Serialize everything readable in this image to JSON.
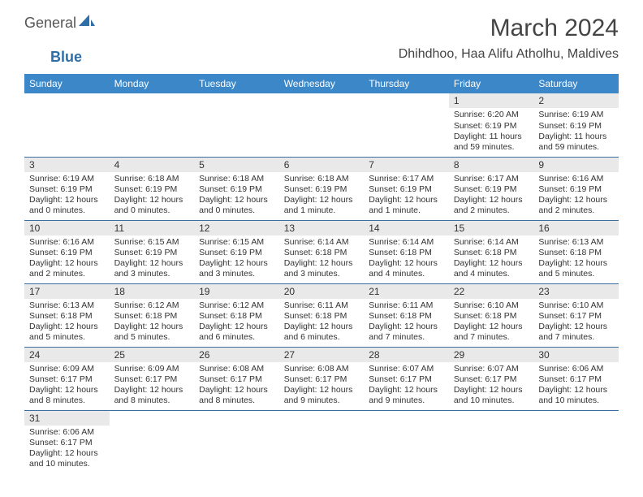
{
  "logo": {
    "part1": "General",
    "part2": "Blue"
  },
  "title": "March 2024",
  "location": "Dhihdhoo, Haa Alifu Atholhu, Maldives",
  "colors": {
    "header_bg": "#3b87c8",
    "header_fg": "#ffffff",
    "daybar_bg": "#e9e9e9",
    "row_border": "#3b6fa0",
    "logo_blue": "#2f6fa8"
  },
  "weekdays": [
    "Sunday",
    "Monday",
    "Tuesday",
    "Wednesday",
    "Thursday",
    "Friday",
    "Saturday"
  ],
  "grid": [
    [
      {
        "n": "",
        "lines": []
      },
      {
        "n": "",
        "lines": []
      },
      {
        "n": "",
        "lines": []
      },
      {
        "n": "",
        "lines": []
      },
      {
        "n": "",
        "lines": []
      },
      {
        "n": "1",
        "lines": [
          "Sunrise: 6:20 AM",
          "Sunset: 6:19 PM",
          "Daylight: 11 hours and 59 minutes."
        ]
      },
      {
        "n": "2",
        "lines": [
          "Sunrise: 6:19 AM",
          "Sunset: 6:19 PM",
          "Daylight: 11 hours and 59 minutes."
        ]
      }
    ],
    [
      {
        "n": "3",
        "lines": [
          "Sunrise: 6:19 AM",
          "Sunset: 6:19 PM",
          "Daylight: 12 hours and 0 minutes."
        ]
      },
      {
        "n": "4",
        "lines": [
          "Sunrise: 6:18 AM",
          "Sunset: 6:19 PM",
          "Daylight: 12 hours and 0 minutes."
        ]
      },
      {
        "n": "5",
        "lines": [
          "Sunrise: 6:18 AM",
          "Sunset: 6:19 PM",
          "Daylight: 12 hours and 0 minutes."
        ]
      },
      {
        "n": "6",
        "lines": [
          "Sunrise: 6:18 AM",
          "Sunset: 6:19 PM",
          "Daylight: 12 hours and 1 minute."
        ]
      },
      {
        "n": "7",
        "lines": [
          "Sunrise: 6:17 AM",
          "Sunset: 6:19 PM",
          "Daylight: 12 hours and 1 minute."
        ]
      },
      {
        "n": "8",
        "lines": [
          "Sunrise: 6:17 AM",
          "Sunset: 6:19 PM",
          "Daylight: 12 hours and 2 minutes."
        ]
      },
      {
        "n": "9",
        "lines": [
          "Sunrise: 6:16 AM",
          "Sunset: 6:19 PM",
          "Daylight: 12 hours and 2 minutes."
        ]
      }
    ],
    [
      {
        "n": "10",
        "lines": [
          "Sunrise: 6:16 AM",
          "Sunset: 6:19 PM",
          "Daylight: 12 hours and 2 minutes."
        ]
      },
      {
        "n": "11",
        "lines": [
          "Sunrise: 6:15 AM",
          "Sunset: 6:19 PM",
          "Daylight: 12 hours and 3 minutes."
        ]
      },
      {
        "n": "12",
        "lines": [
          "Sunrise: 6:15 AM",
          "Sunset: 6:19 PM",
          "Daylight: 12 hours and 3 minutes."
        ]
      },
      {
        "n": "13",
        "lines": [
          "Sunrise: 6:14 AM",
          "Sunset: 6:18 PM",
          "Daylight: 12 hours and 3 minutes."
        ]
      },
      {
        "n": "14",
        "lines": [
          "Sunrise: 6:14 AM",
          "Sunset: 6:18 PM",
          "Daylight: 12 hours and 4 minutes."
        ]
      },
      {
        "n": "15",
        "lines": [
          "Sunrise: 6:14 AM",
          "Sunset: 6:18 PM",
          "Daylight: 12 hours and 4 minutes."
        ]
      },
      {
        "n": "16",
        "lines": [
          "Sunrise: 6:13 AM",
          "Sunset: 6:18 PM",
          "Daylight: 12 hours and 5 minutes."
        ]
      }
    ],
    [
      {
        "n": "17",
        "lines": [
          "Sunrise: 6:13 AM",
          "Sunset: 6:18 PM",
          "Daylight: 12 hours and 5 minutes."
        ]
      },
      {
        "n": "18",
        "lines": [
          "Sunrise: 6:12 AM",
          "Sunset: 6:18 PM",
          "Daylight: 12 hours and 5 minutes."
        ]
      },
      {
        "n": "19",
        "lines": [
          "Sunrise: 6:12 AM",
          "Sunset: 6:18 PM",
          "Daylight: 12 hours and 6 minutes."
        ]
      },
      {
        "n": "20",
        "lines": [
          "Sunrise: 6:11 AM",
          "Sunset: 6:18 PM",
          "Daylight: 12 hours and 6 minutes."
        ]
      },
      {
        "n": "21",
        "lines": [
          "Sunrise: 6:11 AM",
          "Sunset: 6:18 PM",
          "Daylight: 12 hours and 7 minutes."
        ]
      },
      {
        "n": "22",
        "lines": [
          "Sunrise: 6:10 AM",
          "Sunset: 6:18 PM",
          "Daylight: 12 hours and 7 minutes."
        ]
      },
      {
        "n": "23",
        "lines": [
          "Sunrise: 6:10 AM",
          "Sunset: 6:17 PM",
          "Daylight: 12 hours and 7 minutes."
        ]
      }
    ],
    [
      {
        "n": "24",
        "lines": [
          "Sunrise: 6:09 AM",
          "Sunset: 6:17 PM",
          "Daylight: 12 hours and 8 minutes."
        ]
      },
      {
        "n": "25",
        "lines": [
          "Sunrise: 6:09 AM",
          "Sunset: 6:17 PM",
          "Daylight: 12 hours and 8 minutes."
        ]
      },
      {
        "n": "26",
        "lines": [
          "Sunrise: 6:08 AM",
          "Sunset: 6:17 PM",
          "Daylight: 12 hours and 8 minutes."
        ]
      },
      {
        "n": "27",
        "lines": [
          "Sunrise: 6:08 AM",
          "Sunset: 6:17 PM",
          "Daylight: 12 hours and 9 minutes."
        ]
      },
      {
        "n": "28",
        "lines": [
          "Sunrise: 6:07 AM",
          "Sunset: 6:17 PM",
          "Daylight: 12 hours and 9 minutes."
        ]
      },
      {
        "n": "29",
        "lines": [
          "Sunrise: 6:07 AM",
          "Sunset: 6:17 PM",
          "Daylight: 12 hours and 10 minutes."
        ]
      },
      {
        "n": "30",
        "lines": [
          "Sunrise: 6:06 AM",
          "Sunset: 6:17 PM",
          "Daylight: 12 hours and 10 minutes."
        ]
      }
    ],
    [
      {
        "n": "31",
        "lines": [
          "Sunrise: 6:06 AM",
          "Sunset: 6:17 PM",
          "Daylight: 12 hours and 10 minutes."
        ]
      },
      {
        "n": "",
        "lines": []
      },
      {
        "n": "",
        "lines": []
      },
      {
        "n": "",
        "lines": []
      },
      {
        "n": "",
        "lines": []
      },
      {
        "n": "",
        "lines": []
      },
      {
        "n": "",
        "lines": []
      }
    ]
  ]
}
